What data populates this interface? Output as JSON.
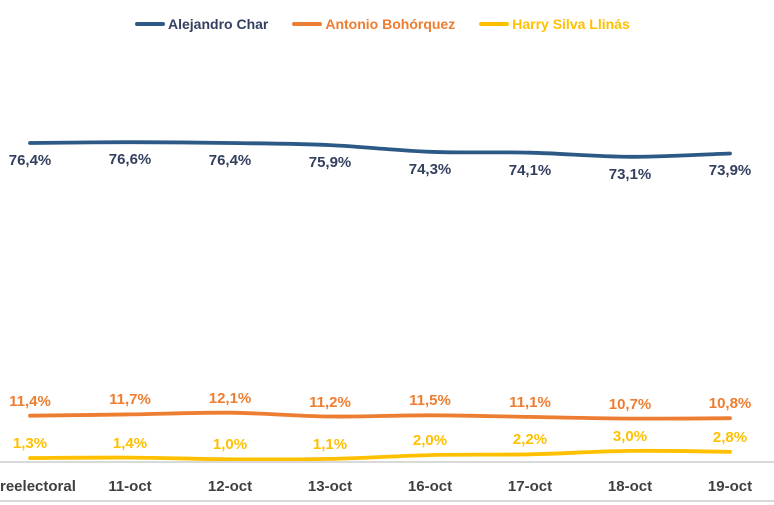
{
  "chart_data": {
    "type": "line",
    "title": "",
    "xlabel": "",
    "ylabel": "",
    "legend_position": "top",
    "grid": false,
    "ylim": [
      0,
      110
    ],
    "value_format": "percent-comma-decimal",
    "categories": [
      "reelectoral",
      "11-oct",
      "12-oct",
      "13-oct",
      "16-oct",
      "17-oct",
      "18-oct",
      "19-oct"
    ],
    "series": [
      {
        "name": "Alejandro Char",
        "color": "#2d5986",
        "label_color": "#333f5f",
        "label_position": "below",
        "values": [
          76.4,
          76.6,
          76.4,
          75.9,
          74.3,
          74.1,
          73.1,
          73.9
        ],
        "labels": [
          "76,4%",
          "76,6%",
          "76,4%",
          "75,9%",
          "74,3%",
          "74,1%",
          "73,1%",
          "73,9%"
        ]
      },
      {
        "name": "Antonio Bohórquez",
        "color": "#ed7d31",
        "label_color": "#ed7d31",
        "label_position": "above",
        "values": [
          11.4,
          11.7,
          12.1,
          11.2,
          11.5,
          11.1,
          10.7,
          10.8
        ],
        "labels": [
          "11,4%",
          "11,7%",
          "12,1%",
          "11,2%",
          "11,5%",
          "11,1%",
          "10,7%",
          "10,8%"
        ]
      },
      {
        "name": "Harry Silva Llinás",
        "color": "#ffc000",
        "label_color": "#ffc000",
        "label_position": "above",
        "values": [
          1.3,
          1.4,
          1.0,
          1.1,
          2.0,
          2.2,
          3.0,
          2.8
        ],
        "labels": [
          "1,3%",
          "1,4%",
          "1,0%",
          "1,1%",
          "2,0%",
          "2,2%",
          "3,0%",
          "2,8%"
        ]
      }
    ],
    "axis_line_color": "#d9d9d9",
    "x_tick_color": "#3f3f3f"
  }
}
